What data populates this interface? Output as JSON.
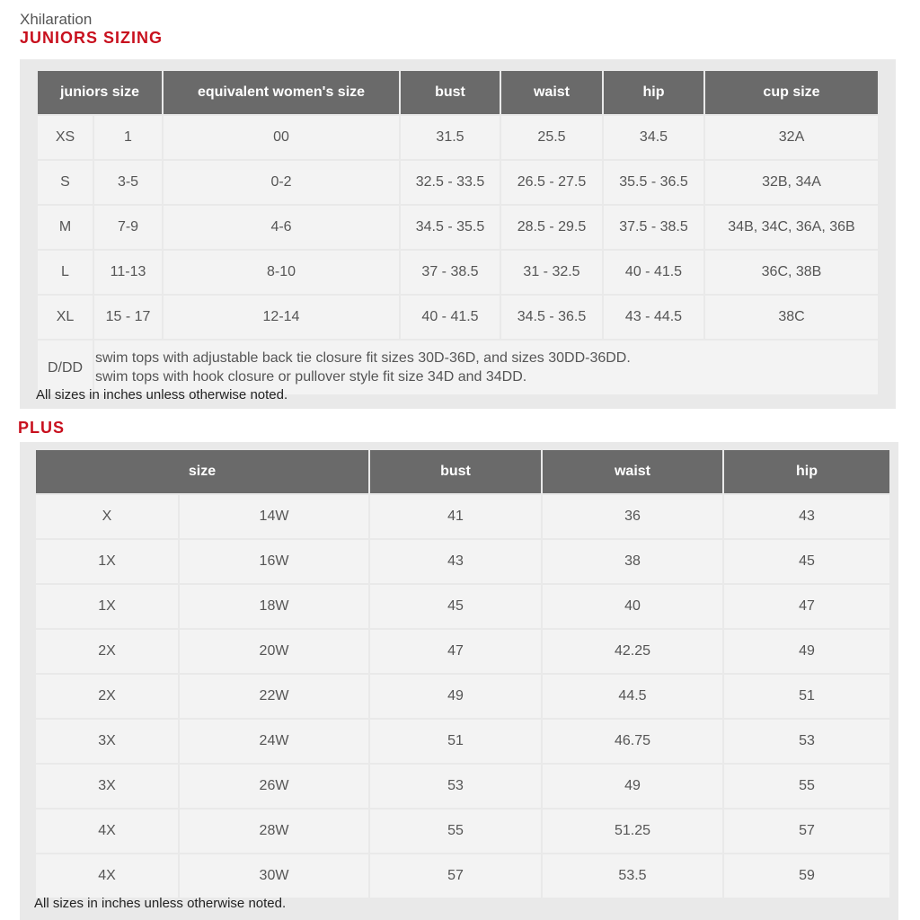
{
  "brand": "Xhilaration",
  "juniors": {
    "title": "JUNIORS SIZING",
    "headers": [
      "juniors size",
      "equivalent women's size",
      "bust",
      "waist",
      "hip",
      "cup size"
    ],
    "rows": [
      [
        "XS",
        "1",
        "00",
        "31.5",
        "25.5",
        "34.5",
        "32A"
      ],
      [
        "S",
        "3-5",
        "0-2",
        "32.5 - 33.5",
        "26.5 - 27.5",
        "35.5 - 36.5",
        "32B, 34A"
      ],
      [
        "M",
        "7-9",
        "4-6",
        "34.5 - 35.5",
        "28.5 - 29.5",
        "37.5 - 38.5",
        "34B, 34C, 36A, 36B"
      ],
      [
        "L",
        "11-13",
        "8-10",
        "37 - 38.5",
        "31 - 32.5",
        "40 - 41.5",
        "36C, 38B"
      ],
      [
        "XL",
        "15 - 17",
        "12-14",
        "40 - 41.5",
        "34.5 - 36.5",
        "43 - 44.5",
        "38C"
      ]
    ],
    "dd_label": "D/DD",
    "dd_line1": "swim tops with adjustable back tie closure fit sizes 30D-36D, and sizes 30DD-36DD.",
    "dd_line2": "swim tops with hook closure or pullover style fit size 34D and 34DD.",
    "note": "All sizes in inches unless otherwise noted."
  },
  "plus": {
    "title": "PLUS",
    "headers": [
      "size",
      "bust",
      "waist",
      "hip"
    ],
    "rows": [
      [
        "X",
        "14W",
        "41",
        "36",
        "43"
      ],
      [
        "1X",
        "16W",
        "43",
        "38",
        "45"
      ],
      [
        "1X",
        "18W",
        "45",
        "40",
        "47"
      ],
      [
        "2X",
        "20W",
        "47",
        "42.25",
        "49"
      ],
      [
        "2X",
        "22W",
        "49",
        "44.5",
        "51"
      ],
      [
        "3X",
        "24W",
        "51",
        "46.75",
        "53"
      ],
      [
        "3X",
        "26W",
        "53",
        "49",
        "55"
      ],
      [
        "4X",
        "28W",
        "55",
        "51.25",
        "57"
      ],
      [
        "4X",
        "30W",
        "57",
        "53.5",
        "59"
      ]
    ],
    "note": "All sizes in inches unless otherwise noted."
  },
  "colors": {
    "accent": "#c8101e",
    "header_bg": "#6a6a6a",
    "cell_bg": "#f3f3f3"
  }
}
